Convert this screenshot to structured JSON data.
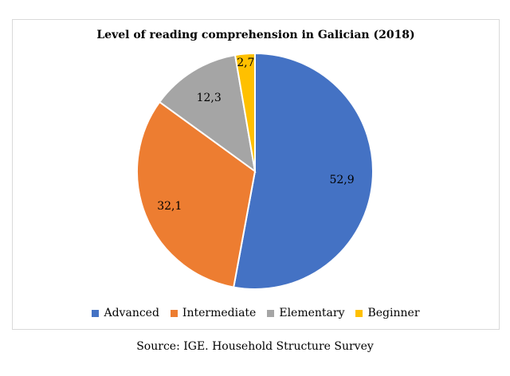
{
  "chart_data": {
    "type": "pie",
    "title": "Level of reading comprehension in Galician (2018)",
    "categories": [
      "Advanced",
      "Intermediate",
      "Elementary",
      "Beginner"
    ],
    "values": [
      52.9,
      32.1,
      12.3,
      2.7
    ],
    "value_labels": [
      "52,9",
      "32,1",
      "12,3",
      "2,7"
    ],
    "colors": [
      "#4472c4",
      "#ed7d31",
      "#a5a5a5",
      "#ffc000"
    ],
    "legend_position": "bottom",
    "start_angle": "top, clockwise"
  },
  "legend": {
    "items": [
      {
        "label": "Advanced",
        "color": "#4472c4"
      },
      {
        "label": "Intermediate",
        "color": "#ed7d31"
      },
      {
        "label": "Elementary",
        "color": "#a5a5a5"
      },
      {
        "label": "Beginner",
        "color": "#ffc000"
      }
    ]
  },
  "source": "Source: IGE. Household Structure Survey"
}
